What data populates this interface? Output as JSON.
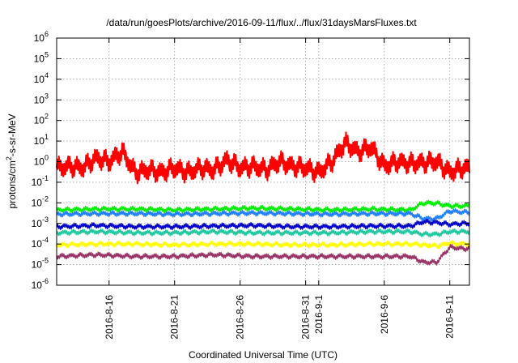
{
  "chart_data": {
    "type": "line",
    "title": "/data/run/goesPlots/archive/2016-09-11/flux/../flux/31daysMarsFluxes.txt",
    "xlabel": "Coordinated Universal Time (UTC)",
    "ylabel": "protons/cm²-s-sr-MeV",
    "ylabel_parts": {
      "pre": "protons/cm",
      "sup": "2",
      "post": "-s-sr-MeV"
    },
    "y_scale": "log",
    "ylim": [
      1e-06,
      1000000.0
    ],
    "y_ticks": [
      {
        "value": 1e-06,
        "base": "10",
        "exp": "-6"
      },
      {
        "value": 1e-05,
        "base": "10",
        "exp": "-5"
      },
      {
        "value": 0.0001,
        "base": "10",
        "exp": "-4"
      },
      {
        "value": 0.001,
        "base": "10",
        "exp": "-3"
      },
      {
        "value": 0.01,
        "base": "10",
        "exp": "-2"
      },
      {
        "value": 0.1,
        "base": "10",
        "exp": "-1"
      },
      {
        "value": 1.0,
        "base": "10",
        "exp": "0"
      },
      {
        "value": 10.0,
        "base": "10",
        "exp": "1"
      },
      {
        "value": 100.0,
        "base": "10",
        "exp": "2"
      },
      {
        "value": 1000.0,
        "base": "10",
        "exp": "3"
      },
      {
        "value": 10000.0,
        "base": "10",
        "exp": "4"
      },
      {
        "value": 100000.0,
        "base": "10",
        "exp": "5"
      },
      {
        "value": 1000000.0,
        "base": "10",
        "exp": "6"
      }
    ],
    "xlim": [
      "2016-08-12",
      "2016-09-12"
    ],
    "x_ticks": [
      "2016-8-16",
      "2016-8-21",
      "2016-8-26",
      "2016-8-31",
      "2016-9-1",
      "2016-9-6",
      "2016-9-11"
    ],
    "grid": true,
    "series": [
      {
        "color": "#ff0000",
        "x": [
          "2016-08-12",
          "2016-08-13",
          "2016-08-14",
          "2016-08-15",
          "2016-08-16",
          "2016-08-17",
          "2016-08-18",
          "2016-08-19",
          "2016-08-20",
          "2016-08-21",
          "2016-08-22",
          "2016-08-23",
          "2016-08-24",
          "2016-08-25",
          "2016-08-26",
          "2016-08-27",
          "2016-08-28",
          "2016-08-29",
          "2016-08-30",
          "2016-08-31",
          "2016-09-01",
          "2016-09-02",
          "2016-09-03",
          "2016-09-04",
          "2016-09-05",
          "2016-09-06",
          "2016-09-07",
          "2016-09-08",
          "2016-09-09",
          "2016-09-10",
          "2016-09-11",
          "2016-09-12"
        ],
        "values": [
          0.5,
          0.6,
          0.5,
          1.5,
          1.0,
          3.0,
          0.3,
          0.4,
          0.3,
          0.5,
          0.3,
          0.5,
          0.4,
          1.2,
          0.5,
          0.6,
          0.4,
          1.0,
          0.6,
          0.5,
          0.3,
          1.0,
          8.0,
          3.0,
          5.0,
          0.6,
          1.0,
          0.8,
          0.9,
          1.0,
          0.3,
          0.5
        ]
      },
      {
        "color": "#00ee00",
        "x": [
          "2016-08-12",
          "2016-08-15",
          "2016-08-18",
          "2016-08-21",
          "2016-08-24",
          "2016-08-27",
          "2016-08-30",
          "2016-09-02",
          "2016-09-05",
          "2016-09-08",
          "2016-09-09",
          "2016-09-10",
          "2016-09-11",
          "2016-09-12"
        ],
        "values": [
          0.0045,
          0.005,
          0.005,
          0.0045,
          0.005,
          0.0055,
          0.005,
          0.0045,
          0.005,
          0.0045,
          0.01,
          0.0095,
          0.007,
          0.007
        ]
      },
      {
        "color": "#2080ff",
        "x": [
          "2016-08-12",
          "2016-08-15",
          "2016-08-18",
          "2016-08-21",
          "2016-08-24",
          "2016-08-27",
          "2016-08-30",
          "2016-09-02",
          "2016-09-05",
          "2016-09-08",
          "2016-09-09",
          "2016-09-10",
          "2016-09-11",
          "2016-09-12"
        ],
        "values": [
          0.0028,
          0.003,
          0.003,
          0.0028,
          0.003,
          0.0032,
          0.003,
          0.0028,
          0.003,
          0.003,
          0.0017,
          0.0017,
          0.004,
          0.0035
        ]
      },
      {
        "color": "#0000cc",
        "x": [
          "2016-08-12",
          "2016-08-15",
          "2016-08-18",
          "2016-08-21",
          "2016-08-24",
          "2016-08-27",
          "2016-08-30",
          "2016-09-02",
          "2016-09-05",
          "2016-09-08",
          "2016-09-09",
          "2016-09-10",
          "2016-09-11",
          "2016-09-12"
        ],
        "values": [
          0.0007,
          0.0008,
          0.0007,
          0.0007,
          0.00075,
          0.0008,
          0.0007,
          0.0007,
          0.00075,
          0.00075,
          0.0012,
          0.0011,
          0.0009,
          0.001
        ]
      },
      {
        "color": "#20c8a0",
        "x": [
          "2016-08-12",
          "2016-08-15",
          "2016-08-18",
          "2016-08-21",
          "2016-08-24",
          "2016-08-27",
          "2016-08-30",
          "2016-09-02",
          "2016-09-05",
          "2016-09-08",
          "2016-09-09",
          "2016-09-10",
          "2016-09-11",
          "2016-09-12"
        ],
        "values": [
          0.00035,
          0.0004,
          0.00035,
          0.00035,
          0.0004,
          0.00035,
          0.00035,
          0.00035,
          0.0004,
          0.0004,
          0.0003,
          0.0003,
          0.0004,
          0.0004
        ]
      },
      {
        "color": "#ffff00",
        "x": [
          "2016-08-12",
          "2016-08-15",
          "2016-08-18",
          "2016-08-21",
          "2016-08-24",
          "2016-08-27",
          "2016-08-30",
          "2016-09-02",
          "2016-09-05",
          "2016-09-08",
          "2016-09-09",
          "2016-09-10",
          "2016-09-11",
          "2016-09-12"
        ],
        "values": [
          9e-05,
          0.0001,
          0.0001,
          9e-05,
          0.0001,
          0.0001,
          9e-05,
          9e-05,
          0.0001,
          0.0001,
          9e-05,
          8e-05,
          0.00011,
          0.0001
        ]
      },
      {
        "color": "#993366",
        "x": [
          "2016-08-12",
          "2016-08-15",
          "2016-08-18",
          "2016-08-21",
          "2016-08-24",
          "2016-08-27",
          "2016-08-30",
          "2016-09-02",
          "2016-09-05",
          "2016-09-08",
          "2016-09-09",
          "2016-09-10",
          "2016-09-11",
          "2016-09-12"
        ],
        "values": [
          2.5e-05,
          3e-05,
          2.5e-05,
          2.5e-05,
          3e-05,
          2.5e-05,
          2.5e-05,
          2.5e-05,
          2.5e-05,
          2.5e-05,
          1.3e-05,
          1.3e-05,
          7e-05,
          6e-05
        ]
      }
    ]
  }
}
